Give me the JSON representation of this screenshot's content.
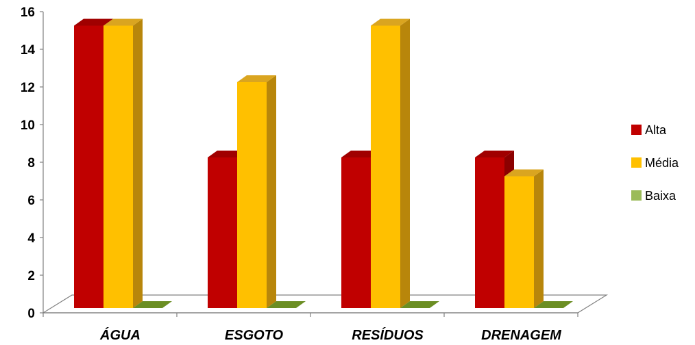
{
  "chart_data": {
    "type": "bar",
    "title": "",
    "xlabel": "",
    "ylabel": "",
    "categories": [
      "ÁGUA",
      "ESGOTO",
      "RESÍDUOS",
      "DRENAGEM"
    ],
    "series": [
      {
        "name": "Alta",
        "values": [
          15,
          8,
          8,
          8
        ],
        "color": "#C00000",
        "side": "#8B0000",
        "top": "#A00000"
      },
      {
        "name": "Média",
        "values": [
          15,
          12,
          15,
          7
        ],
        "color": "#FFC000",
        "side": "#B8860B",
        "top": "#DAA520"
      },
      {
        "name": "Baixa",
        "values": [
          0,
          0,
          0,
          0
        ],
        "color": "#9BBB59",
        "side": "#6B8E23",
        "top": "#7A9A3A"
      }
    ],
    "ylim": [
      0,
      16
    ],
    "yticks": [
      0,
      2,
      4,
      6,
      8,
      10,
      12,
      14,
      16
    ],
    "legend_position": "right",
    "grid": false,
    "style": "3d-clustered-column"
  }
}
